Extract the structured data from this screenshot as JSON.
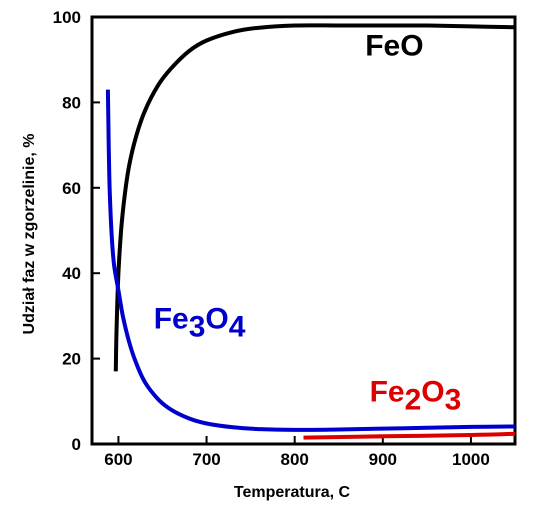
{
  "chart_data": {
    "type": "line",
    "title": "",
    "xlabel": "Temperatura,  C",
    "ylabel": "Udział faz w zgorzelinie,  %",
    "xlim": [
      570,
      1050
    ],
    "ylim": [
      0,
      100
    ],
    "xticks": [
      "600",
      "700",
      "800",
      "900",
      "1000"
    ],
    "yticks": [
      "0",
      "20",
      "40",
      "60",
      "80",
      "100"
    ],
    "grid": false,
    "legend": "none",
    "series": [
      {
        "name": "FeO",
        "color": "#000000",
        "x": [
          597,
          598,
          600,
          603,
          607,
          612,
          620,
          630,
          645,
          660,
          680,
          700,
          730,
          760,
          800,
          850,
          900,
          950,
          1000,
          1050
        ],
        "y": [
          17,
          28,
          40,
          50,
          58,
          65,
          72,
          78,
          84,
          88,
          92,
          94.5,
          96.5,
          97.5,
          98,
          98,
          98,
          98,
          97.8,
          97.6
        ]
      },
      {
        "name": "Fe3O4",
        "color": "#0000cc",
        "x": [
          588,
          589,
          590,
          592,
          595,
          600,
          605,
          612,
          620,
          630,
          645,
          660,
          680,
          700,
          730,
          760,
          800,
          850,
          900,
          950,
          1000,
          1050
        ],
        "y": [
          83,
          70,
          60,
          50,
          42,
          36,
          30,
          24,
          19,
          14.5,
          10.5,
          8,
          6,
          4.8,
          3.9,
          3.5,
          3.3,
          3.4,
          3.6,
          3.8,
          4,
          4.1
        ]
      },
      {
        "name": "Fe2O3",
        "color": "#dd0000",
        "x": [
          810,
          900,
          1000,
          1050
        ],
        "y": [
          1.5,
          1.8,
          2.1,
          2.4
        ]
      }
    ],
    "annotations": [
      {
        "series": "FeO",
        "base": "FeO",
        "x": 880,
        "y": 91,
        "color": "#000000"
      },
      {
        "series": "Fe3O4",
        "base": "Fe",
        "sub1": "3",
        "mid": "O",
        "sub2": "4",
        "x": 640,
        "y": 27,
        "color": "#0000cc"
      },
      {
        "series": "Fe2O3",
        "base": "Fe",
        "sub1": "2",
        "mid": "O",
        "sub2": "3",
        "x": 885,
        "y": 10,
        "color": "#dd0000"
      }
    ]
  }
}
